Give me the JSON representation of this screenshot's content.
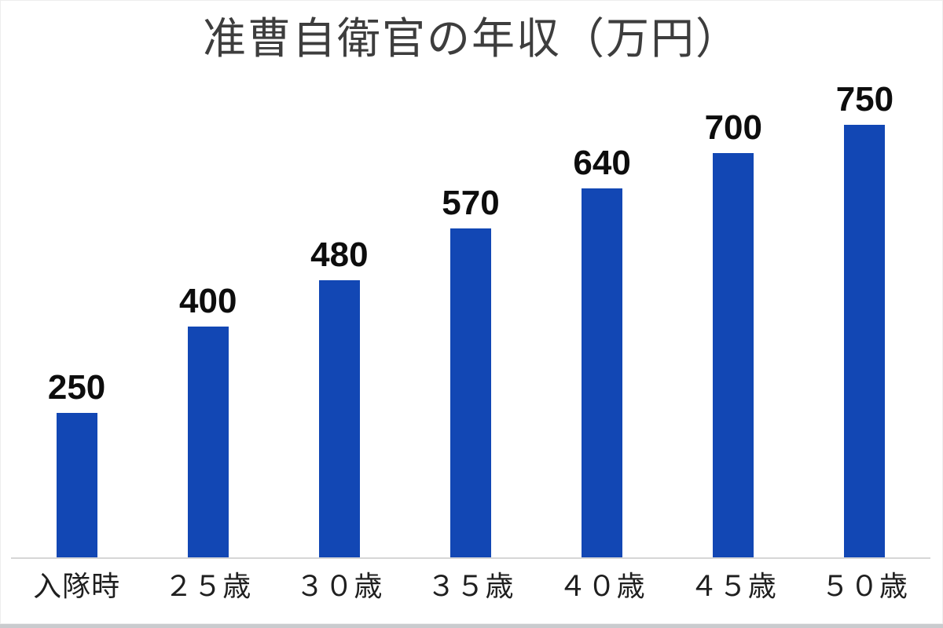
{
  "chart_data": {
    "type": "bar",
    "title": "准曹自衛官の年収（万円）",
    "categories": [
      "入隊時",
      "２５歳",
      "３０歳",
      "３５歳",
      "４０歳",
      "４５歳",
      "５０歳"
    ],
    "values": [
      250,
      400,
      480,
      570,
      640,
      700,
      750
    ],
    "xlabel": "",
    "ylabel": "",
    "ylim": [
      0,
      800
    ],
    "grid": false,
    "legend": "none",
    "data_labels": true,
    "bar_color": "#1247b4",
    "value_label_color": "#0d0d0d",
    "category_label_color": "#1f1f1f",
    "title_color": "#3d3d3d",
    "axis_line_color": "#d6d6d6",
    "background_color": "#ffffff"
  }
}
